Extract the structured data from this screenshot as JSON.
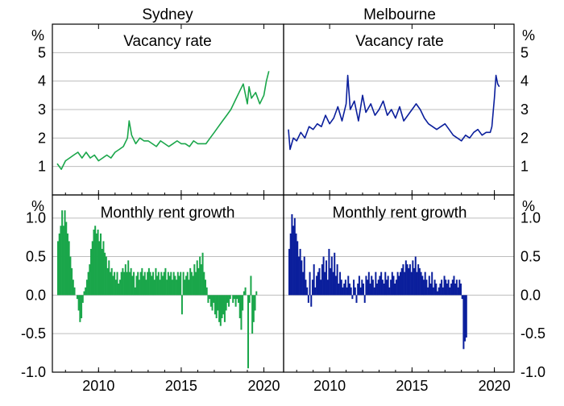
{
  "colors": {
    "sydney": "#1aa64a",
    "melbourne": "#0b1f9c",
    "grid": "#bdbdbd",
    "frame": "#000000"
  },
  "panels": {
    "col_titles": [
      "Sydney",
      "Melbourne"
    ],
    "top_title": "Vacancy rate",
    "bottom_title": "Monthly rent growth",
    "unit": "%"
  },
  "chart_data": [
    {
      "type": "line",
      "name": "Sydney vacancy rate",
      "title": "Vacancy rate",
      "panel": "top-left",
      "ylabel": "%",
      "ylim": [
        0,
        6
      ],
      "yticks": [
        1,
        2,
        3,
        4,
        5
      ],
      "xlim": [
        2007.5,
        2020.9
      ],
      "xticks": [
        2010,
        2015,
        2020
      ],
      "color": "sydney",
      "x": [
        2007.5,
        2007.75,
        2008.0,
        2008.25,
        2008.5,
        2008.75,
        2009.0,
        2009.25,
        2009.5,
        2009.75,
        2010.0,
        2010.25,
        2010.5,
        2010.75,
        2011.0,
        2011.25,
        2011.5,
        2011.75,
        2011.85,
        2012.0,
        2012.25,
        2012.5,
        2012.75,
        2013.0,
        2013.25,
        2013.5,
        2013.75,
        2014.0,
        2014.25,
        2014.5,
        2014.75,
        2015.0,
        2015.25,
        2015.5,
        2015.75,
        2016.0,
        2016.25,
        2016.5,
        2016.75,
        2017.0,
        2017.25,
        2017.5,
        2017.75,
        2018.0,
        2018.25,
        2018.5,
        2018.75,
        2019.0,
        2019.1,
        2019.25,
        2019.5,
        2019.75,
        2020.0,
        2020.15,
        2020.3
      ],
      "y": [
        1.1,
        0.9,
        1.2,
        1.3,
        1.4,
        1.5,
        1.3,
        1.5,
        1.3,
        1.4,
        1.2,
        1.3,
        1.4,
        1.3,
        1.5,
        1.6,
        1.7,
        2.0,
        2.6,
        2.1,
        1.8,
        2.0,
        1.9,
        1.9,
        1.8,
        1.7,
        1.9,
        1.8,
        1.7,
        1.8,
        1.9,
        1.8,
        1.8,
        1.7,
        1.9,
        1.8,
        1.8,
        1.8,
        2.0,
        2.2,
        2.4,
        2.6,
        2.8,
        3.0,
        3.3,
        3.6,
        3.9,
        3.2,
        3.8,
        3.4,
        3.6,
        3.2,
        3.5,
        4.0,
        4.35
      ]
    },
    {
      "type": "line",
      "name": "Melbourne vacancy rate",
      "title": "Vacancy rate",
      "panel": "top-right",
      "ylabel": "%",
      "ylim": [
        0,
        6
      ],
      "yticks": [
        1,
        2,
        3,
        4,
        5
      ],
      "xlim": [
        2007.5,
        2020.9
      ],
      "xticks": [
        2010,
        2015,
        2020
      ],
      "color": "melbourne",
      "x": [
        2007.5,
        2007.6,
        2007.8,
        2008.0,
        2008.25,
        2008.5,
        2008.75,
        2009.0,
        2009.25,
        2009.5,
        2009.75,
        2010.0,
        2010.25,
        2010.5,
        2010.75,
        2011.0,
        2011.1,
        2011.25,
        2011.5,
        2011.75,
        2012.0,
        2012.2,
        2012.5,
        2012.75,
        2013.0,
        2013.25,
        2013.5,
        2013.75,
        2014.0,
        2014.25,
        2014.5,
        2014.75,
        2015.0,
        2015.25,
        2015.5,
        2015.75,
        2016.0,
        2016.25,
        2016.5,
        2016.75,
        2017.0,
        2017.25,
        2017.5,
        2017.75,
        2018.0,
        2018.25,
        2018.5,
        2018.75,
        2019.0,
        2019.25,
        2019.5,
        2019.75,
        2019.85,
        2020.0,
        2020.1,
        2020.2,
        2020.3
      ],
      "y": [
        2.3,
        1.6,
        2.0,
        1.9,
        2.2,
        2.0,
        2.4,
        2.3,
        2.5,
        2.4,
        2.8,
        2.5,
        2.7,
        3.1,
        2.6,
        3.2,
        4.2,
        3.0,
        3.3,
        2.6,
        3.5,
        2.9,
        3.2,
        2.8,
        3.0,
        3.3,
        2.8,
        3.0,
        2.7,
        3.1,
        2.6,
        2.8,
        3.0,
        3.2,
        3.0,
        2.7,
        2.5,
        2.4,
        2.3,
        2.4,
        2.5,
        2.3,
        2.1,
        2.0,
        1.9,
        2.1,
        2.0,
        2.2,
        2.3,
        2.1,
        2.2,
        2.2,
        2.4,
        3.4,
        4.2,
        3.9,
        3.8
      ]
    },
    {
      "type": "bar",
      "name": "Sydney monthly rent growth",
      "title": "Monthly rent growth",
      "panel": "bottom-left",
      "ylabel": "%",
      "ylim": [
        -1.0,
        1.3
      ],
      "yticks": [
        -1.0,
        -0.5,
        0.0,
        0.5,
        1.0
      ],
      "ytick_labels": [
        "-1.0",
        "-0.5",
        "0.0",
        "0.5",
        "1.0"
      ],
      "xlim": [
        2007.5,
        2020.9
      ],
      "xticks": [
        2010,
        2015,
        2020
      ],
      "color": "sydney",
      "start": 2007.5,
      "step": 0.08333,
      "values": [
        0.7,
        0.8,
        0.9,
        1.1,
        0.9,
        1.1,
        0.95,
        0.8,
        0.7,
        0.5,
        0.35,
        0.2,
        0.1,
        0.0,
        -0.05,
        -0.2,
        -0.35,
        -0.3,
        -0.1,
        0.05,
        0.1,
        0.2,
        0.3,
        0.4,
        0.6,
        0.7,
        0.85,
        0.9,
        0.8,
        0.85,
        0.7,
        0.8,
        0.6,
        0.7,
        0.55,
        0.5,
        0.35,
        0.45,
        0.3,
        0.35,
        0.25,
        0.3,
        0.2,
        0.3,
        0.15,
        0.2,
        0.3,
        0.35,
        0.3,
        0.4,
        0.3,
        0.45,
        0.3,
        0.35,
        0.25,
        0.3,
        0.1,
        0.25,
        0.3,
        0.2,
        0.3,
        0.35,
        0.25,
        0.3,
        0.2,
        0.3,
        0.35,
        0.3,
        0.25,
        0.3,
        0.2,
        0.35,
        0.25,
        0.3,
        0.2,
        0.3,
        0.25,
        0.3,
        0.35,
        0.2,
        0.3,
        0.25,
        0.3,
        0.2,
        0.3,
        0.25,
        0.2,
        0.3,
        0.25,
        0.3,
        -0.25,
        0.3,
        0.2,
        0.25,
        0.3,
        0.2,
        0.35,
        0.3,
        0.25,
        0.4,
        0.3,
        0.45,
        0.35,
        0.5,
        0.4,
        0.55,
        0.3,
        0.2,
        0.1,
        -0.1,
        -0.05,
        -0.15,
        -0.2,
        -0.1,
        -0.25,
        -0.3,
        -0.2,
        -0.35,
        -0.4,
        -0.3,
        -0.25,
        -0.35,
        -0.2,
        -0.1,
        -0.15,
        -0.05,
        0.0,
        -0.1,
        -0.05,
        -0.15,
        -0.05,
        -0.1,
        -0.3,
        -0.45,
        -0.2,
        0.05,
        0.1,
        0.0,
        -0.95,
        -0.1,
        0.25,
        -0.5,
        -0.35,
        -0.2,
        0.05,
        0.0
      ]
    },
    {
      "type": "bar",
      "name": "Melbourne monthly rent growth",
      "title": "Monthly rent growth",
      "panel": "bottom-right",
      "ylabel": "%",
      "ylim": [
        -1.0,
        1.3
      ],
      "yticks": [
        -1.0,
        -0.5,
        0.0,
        0.5,
        1.0
      ],
      "ytick_labels": [
        "-1.0",
        "-0.5",
        "0.0",
        "0.5",
        "1.0"
      ],
      "xlim": [
        2007.5,
        2020.9
      ],
      "xticks": [
        2010,
        2015,
        2020
      ],
      "color": "melbourne",
      "start": 2007.5,
      "step": 0.08333,
      "values": [
        0.6,
        0.8,
        1.05,
        0.9,
        1.0,
        0.8,
        0.7,
        0.5,
        0.6,
        0.45,
        0.3,
        0.5,
        0.2,
        0.1,
        -0.1,
        0.3,
        -0.15,
        0.2,
        0.4,
        0.1,
        0.25,
        0.3,
        0.35,
        0.2,
        0.4,
        0.5,
        0.3,
        0.45,
        0.2,
        0.6,
        0.35,
        0.5,
        0.3,
        0.55,
        0.25,
        0.4,
        0.15,
        0.3,
        0.2,
        0.1,
        0.15,
        0.2,
        0.1,
        0.25,
        0.15,
        0.1,
        -0.05,
        0.2,
        0.1,
        -0.1,
        0.15,
        0.25,
        0.1,
        0.2,
        0.15,
        -0.1,
        0.25,
        0.2,
        0.3,
        0.15,
        0.25,
        0.2,
        0.1,
        0.3,
        0.15,
        0.2,
        0.25,
        0.3,
        0.2,
        0.15,
        0.3,
        0.2,
        0.25,
        0.1,
        0.2,
        0.3,
        0.25,
        0.15,
        0.2,
        0.3,
        0.25,
        0.3,
        0.35,
        0.4,
        0.3,
        0.45,
        0.4,
        0.35,
        0.4,
        0.3,
        0.45,
        0.35,
        0.5,
        0.3,
        0.4,
        0.35,
        0.3,
        0.25,
        0.2,
        0.3,
        0.2,
        0.1,
        0.25,
        0.15,
        0.3,
        0.1,
        0.2,
        0.15,
        0.05,
        0.1,
        0.15,
        0.2,
        0.1,
        0.25,
        0.2,
        0.15,
        0.2,
        0.1,
        0.15,
        0.2,
        0.25,
        0.15,
        0.2,
        0.1,
        0.2,
        0.15,
        -0.05,
        -0.7,
        -0.6,
        -0.55,
        0.0
      ]
    }
  ]
}
